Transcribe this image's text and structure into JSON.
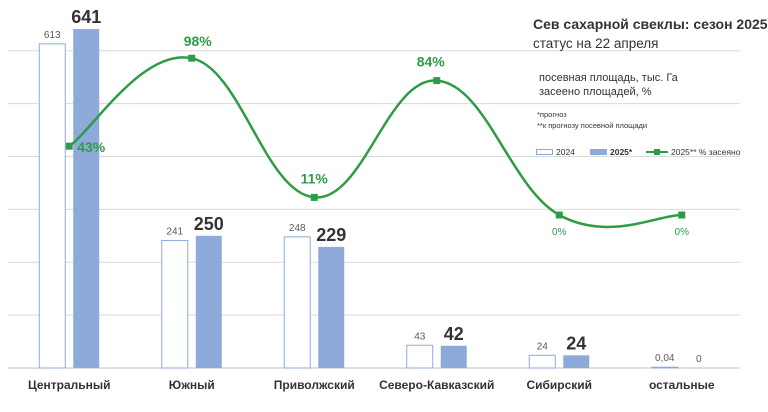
{
  "header": {
    "title": "Сев сахарной свеклы: сезон 2025",
    "subtitle": "статус на 22 апреля",
    "description_line1": "посевная площадь, тыс. Га",
    "description_line2": "засеено площадей, %",
    "note1": "*прогноз",
    "note2": "**к прогнозу посевной площади"
  },
  "legend": {
    "item_2024": "2024",
    "item_2025": "2025*",
    "item_line": "2025** % засеяно"
  },
  "colors": {
    "bar_2024_fill": "#ffffff",
    "bar_2024_stroke": "#8eaadb",
    "bar_2025": "#8eaadb",
    "line": "#2e9c47",
    "grid": "#d9d9d9",
    "text": "#333333"
  },
  "chart_data": {
    "type": "bar",
    "categories": [
      "Центральный",
      "Южный",
      "Приволжский",
      "Северо-Кавказский",
      "Сибирский",
      "остальные"
    ],
    "ylim": [
      0,
      660
    ],
    "grid": true,
    "series": [
      {
        "name": "2024",
        "values": [
          613,
          241,
          248,
          43,
          24,
          0.04
        ],
        "labels": [
          "613",
          "241",
          "248",
          "43",
          "24",
          "0,04"
        ]
      },
      {
        "name": "2025*",
        "values": [
          641,
          250,
          229,
          42,
          24,
          0
        ],
        "labels": [
          "641",
          "250",
          "229",
          "42",
          "24",
          "0"
        ]
      }
    ],
    "line_series": {
      "name": "2025** % засеяно",
      "type": "line",
      "values": [
        43,
        98,
        11,
        84,
        0,
        0
      ],
      "labels": [
        "43%",
        "98%",
        "11%",
        "84%",
        "0%",
        "0%"
      ]
    }
  }
}
